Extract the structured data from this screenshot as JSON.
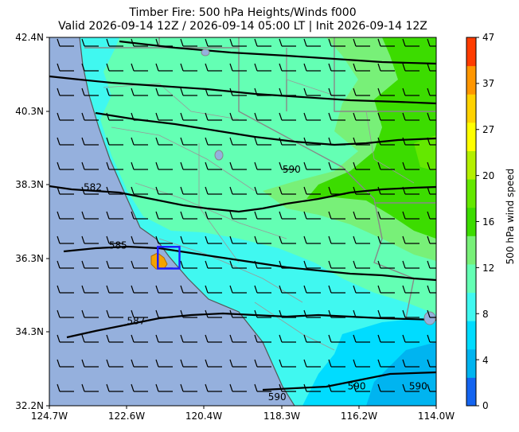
{
  "title_line1": "Timber Fire: 500 hPa Heights/Winds f000",
  "title_line2": "Valid 2026-09-14 12Z / 2026-09-14 05:00 LT | Init 2026-09-14 12Z",
  "map": {
    "extent": {
      "lon_min": -124.7,
      "lon_max": -114.0,
      "lat_min": 32.2,
      "lat_max": 42.4
    },
    "y_tick_labels": [
      "42.4N",
      "40.3N",
      "38.3N",
      "36.3N",
      "34.3N",
      "32.2N"
    ],
    "x_tick_labels": [
      "124.7W",
      "122.6W",
      "120.4W",
      "118.3W",
      "116.2W",
      "114.0W"
    ],
    "ocean_color": "#95b0dd",
    "fire_box": {
      "lon_min": -121.7,
      "lon_max": -121.1,
      "lat_min": 36.0,
      "lat_max": 36.6,
      "color": "#1a1aff"
    },
    "fire_perimeter_color": "#f5a300",
    "contour_labels": [
      {
        "text": "582",
        "lon": -123.5,
        "lat": 38.2
      },
      {
        "text": "585",
        "lon": -122.8,
        "lat": 36.6
      },
      {
        "text": "587",
        "lon": -122.3,
        "lat": 34.5
      },
      {
        "text": "590",
        "lon": -118.0,
        "lat": 38.7
      },
      {
        "text": "590",
        "lon": -118.4,
        "lat": 32.4
      },
      {
        "text": "590",
        "lon": -116.2,
        "lat": 32.7
      },
      {
        "text": "590",
        "lon": -114.5,
        "lat": 32.7
      }
    ]
  },
  "colorbar": {
    "label": "500 hPa wind speed",
    "ticks": [
      "0",
      "4",
      "8",
      "12",
      "16",
      "20",
      "27",
      "37",
      "47"
    ],
    "colors": [
      "#1464f0",
      "#00b4f0",
      "#00dcff",
      "#40f8f0",
      "#64ffb4",
      "#78f078",
      "#3cdc00",
      "#64e800",
      "#b4f000",
      "#ffff00",
      "#ffd200",
      "#ff9600",
      "#ff3c00"
    ]
  }
}
